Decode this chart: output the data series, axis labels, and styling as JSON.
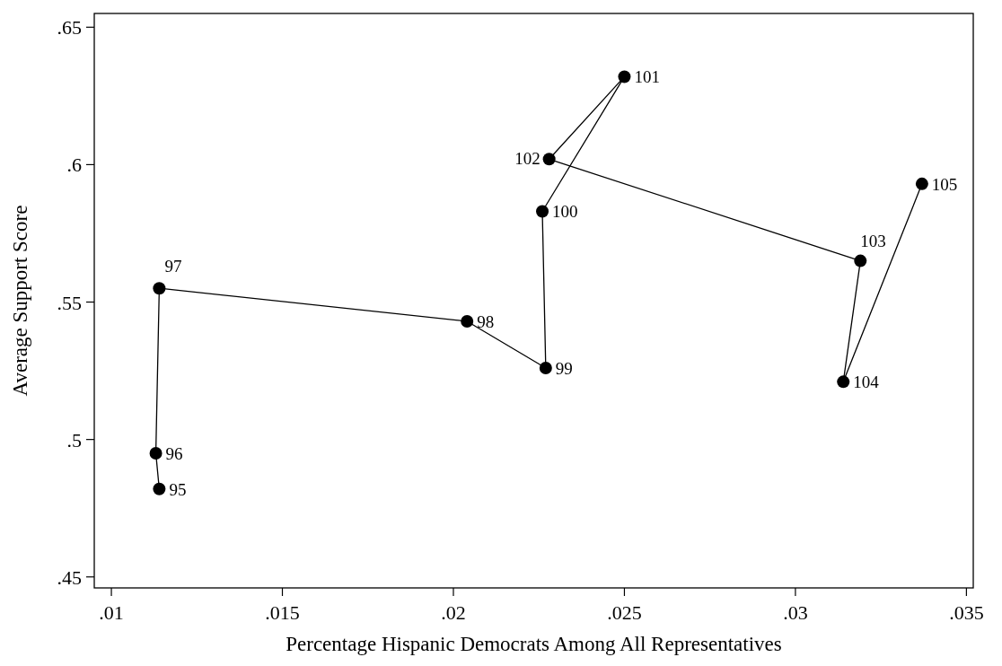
{
  "chart_data": {
    "type": "line",
    "xlabel": "Percentage Hispanic Democrats Among All Representatives",
    "ylabel": "Average Support Score",
    "x": [
      0.0114,
      0.0113,
      0.0114,
      0.0204,
      0.0227,
      0.0226,
      0.025,
      0.0228,
      0.0319,
      0.0314,
      0.0337
    ],
    "series": [
      {
        "color": "#000000",
        "values": [
          0.482,
          0.495,
          0.555,
          0.543,
          0.526,
          0.583,
          0.632,
          0.602,
          0.565,
          0.521,
          0.593
        ]
      }
    ],
    "annotations": [
      {
        "text": "95",
        "x": 0.0114,
        "y": 0.482
      },
      {
        "text": "96",
        "x": 0.0113,
        "y": 0.495
      },
      {
        "text": "97",
        "x": 0.0114,
        "y": 0.555
      },
      {
        "text": "98",
        "x": 0.0204,
        "y": 0.543
      },
      {
        "text": "99",
        "x": 0.0227,
        "y": 0.526
      },
      {
        "text": "100",
        "x": 0.0226,
        "y": 0.583
      },
      {
        "text": "101",
        "x": 0.025,
        "y": 0.632
      },
      {
        "text": "102",
        "x": 0.0228,
        "y": 0.602
      },
      {
        "text": "103",
        "x": 0.0319,
        "y": 0.565
      },
      {
        "text": "104",
        "x": 0.0314,
        "y": 0.521
      },
      {
        "text": "105",
        "x": 0.0337,
        "y": 0.593
      }
    ],
    "xlim": [
      0.0095,
      0.0352
    ],
    "ylim": [
      0.446,
      0.655
    ],
    "xticks": [
      {
        "value": 0.01,
        "label": ".01"
      },
      {
        "value": 0.015,
        "label": ".015"
      },
      {
        "value": 0.02,
        "label": ".02"
      },
      {
        "value": 0.025,
        "label": ".025"
      },
      {
        "value": 0.03,
        "label": ".03"
      },
      {
        "value": 0.035,
        "label": ".035"
      }
    ],
    "yticks": [
      {
        "value": 0.45,
        "label": ".45"
      },
      {
        "value": 0.5,
        "label": ".5"
      },
      {
        "value": 0.55,
        "label": ".55"
      },
      {
        "value": 0.6,
        "label": ".6"
      },
      {
        "value": 0.65,
        "label": ".65"
      }
    ],
    "marker": "circle",
    "line_style": "solid"
  }
}
